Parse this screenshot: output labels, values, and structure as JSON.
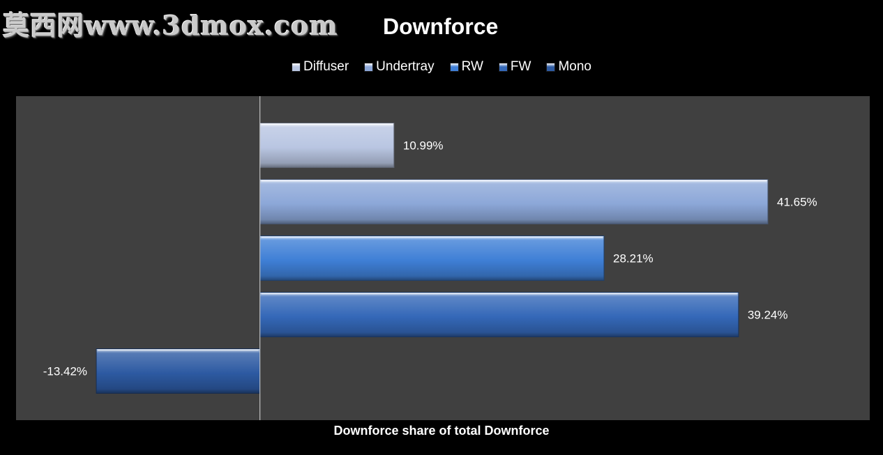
{
  "watermark": "莫西网www.3dmox.com",
  "chart_data": {
    "type": "bar",
    "orientation": "horizontal",
    "title": "Downforce",
    "xlabel": "Downforce share of total Downforce",
    "ylabel": "",
    "categories": [
      "Diffuser",
      "Undertray",
      "RW",
      "FW",
      "Mono"
    ],
    "values": [
      10.99,
      41.65,
      28.21,
      39.24,
      -13.42
    ],
    "value_labels": [
      "10.99%",
      "41.65%",
      "28.21%",
      "39.24%",
      "-13.42%"
    ],
    "unit": "%",
    "xlim": [
      -20,
      50
    ],
    "grid": false,
    "legend_position": "top",
    "colors": [
      "#b9c6e2",
      "#8ca7d8",
      "#3f7fd6",
      "#3468b8",
      "#2d5aa2"
    ],
    "plot_background": "#404040",
    "page_background": "#000000"
  }
}
